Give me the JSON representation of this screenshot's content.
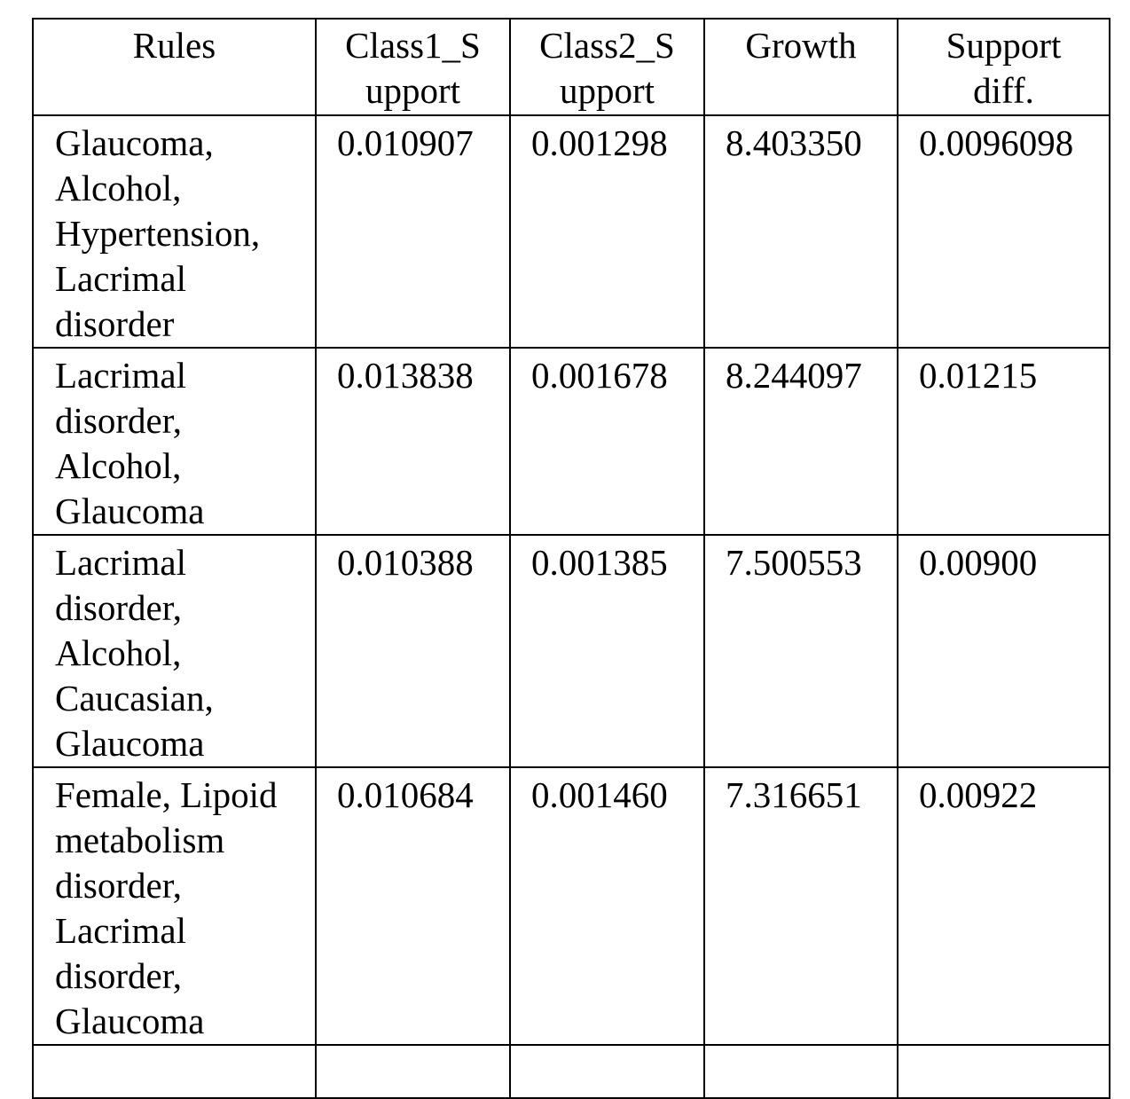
{
  "table": {
    "header": [
      [
        "Rules"
      ],
      [
        "Class1_S",
        "upport"
      ],
      [
        "Class2_S",
        "upport"
      ],
      [
        "Growth"
      ],
      [
        "Support",
        "diff."
      ]
    ],
    "rows": [
      [
        "Glaucoma, Alcohol, Hypertension, Lacrimal disorder",
        "0.010907",
        "0.001298",
        "8.403350",
        "0.0096098"
      ],
      [
        "Lacrimal disorder, Alcohol, Glaucoma",
        "0.013838",
        "0.001678",
        "8.244097",
        "0.01215"
      ],
      [
        "Lacrimal disorder, Alcohol, Caucasian, Glaucoma",
        "0.010388",
        "0.001385",
        "7.500553",
        "0.00900"
      ],
      [
        "Female, Lipoid metabolism disorder, Lacrimal disorder, Glaucoma",
        "0.010684",
        "0.001460",
        "7.316651",
        "0.00922"
      ]
    ]
  }
}
